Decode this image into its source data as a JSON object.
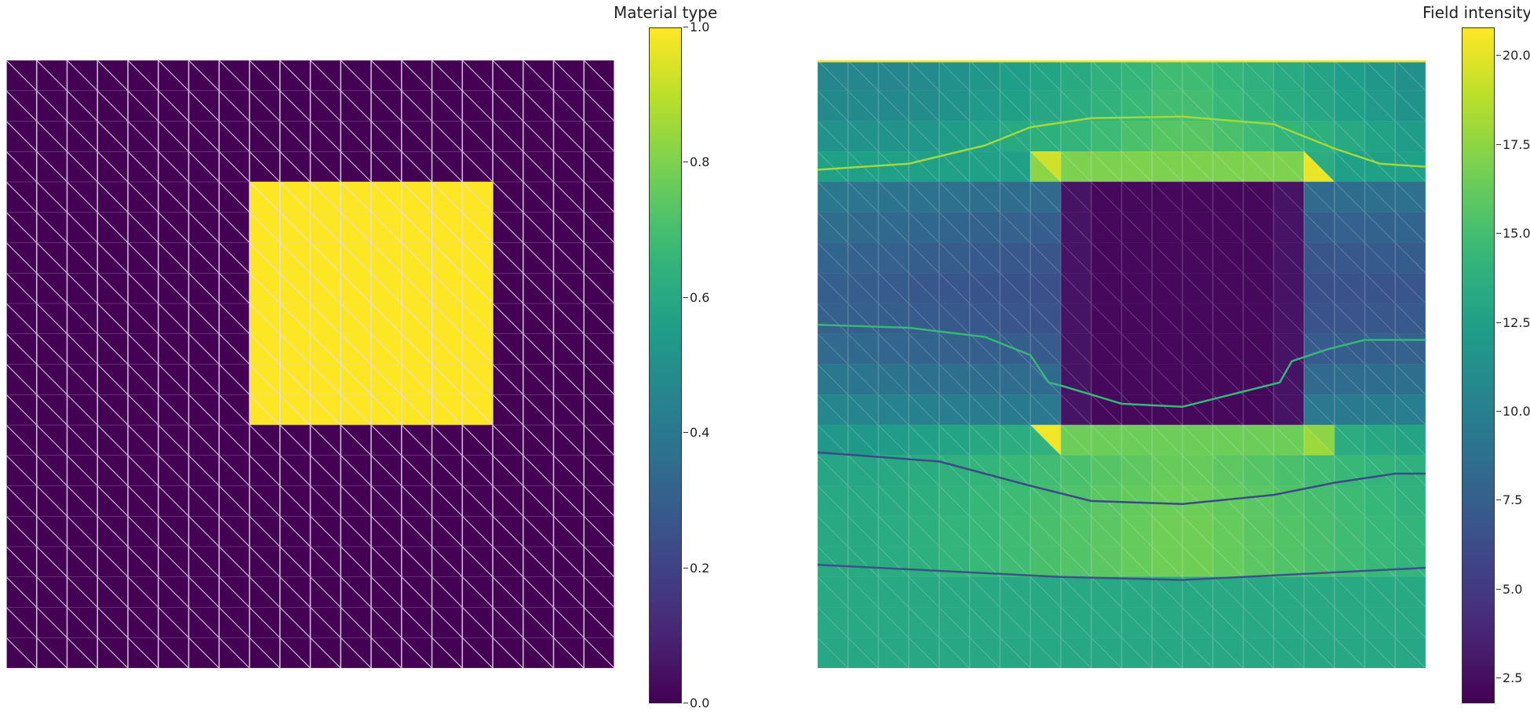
{
  "figure": {
    "panels": [
      {
        "id": "material",
        "colorbar_title": "Material type"
      },
      {
        "id": "field",
        "colorbar_title": "Field intensity"
      }
    ]
  },
  "colors": {
    "viridis": [
      "#440154",
      "#482878",
      "#3e4989",
      "#31688e",
      "#26828e",
      "#1f9e89",
      "#35b779",
      "#6ece58",
      "#b5de2b",
      "#fde725"
    ],
    "mesh_line": "#e8d8f0"
  },
  "chart_data": [
    {
      "type": "heatmap",
      "title": "",
      "colorbar_label": "Material type",
      "grid": {
        "nx": 20,
        "ny": 20,
        "cell": "two triangles per cell, diagonal top-left to bottom-right"
      },
      "values_description": "0 everywhere except an 8x8 block (columns 8-15, rows 4-11 from top) equal to 1",
      "inclusion": {
        "col_start": 8,
        "col_end": 15,
        "row_start": 4,
        "row_end": 11,
        "value": 1.0
      },
      "background_value": 0.0,
      "clim": [
        0.0,
        1.0
      ],
      "colorbar_ticks": [
        "0.0",
        "0.2",
        "0.4",
        "0.6",
        "0.8",
        "1.0"
      ],
      "colorbar_tick_values": [
        0.0,
        0.2,
        0.4,
        0.6,
        0.8,
        1.0
      ],
      "show_mesh": true,
      "axes": "off"
    },
    {
      "type": "heatmap",
      "title": "",
      "colorbar_label": "Field intensity",
      "grid": {
        "nx": 20,
        "ny": 20
      },
      "clim": [
        1.8,
        20.8
      ],
      "colorbar_ticks": [
        "2.5",
        "5.0",
        "7.5",
        "10.0",
        "12.5",
        "15.0",
        "17.5",
        "20.0"
      ],
      "colorbar_tick_values": [
        2.5,
        5.0,
        7.5,
        10.0,
        12.5,
        15.0,
        17.5,
        20.0
      ],
      "regions": {
        "inclusion_low": {
          "col_start": 8,
          "col_end": 15,
          "row_start": 4,
          "row_end": 11,
          "value": 2.2
        },
        "top_strip_high": {
          "row": 3,
          "col_start": 7,
          "col_end": 16,
          "value": 17.0,
          "corner_peak": 19.5
        },
        "bottom_strip_high": {
          "row": 12,
          "col_start": 7,
          "col_end": 16,
          "value": 16.5,
          "corner_peak": 20.5
        },
        "top_boundary_value": 20.5
      },
      "background_profile_by_row": [
        10.6,
        10.8,
        11.5,
        12.5,
        9.5,
        8.6,
        8.0,
        7.6,
        7.8,
        8.4,
        9.4,
        10.6,
        12.0,
        13.0,
        13.2,
        13.3,
        13.3,
        13.2,
        13.2,
        13.1
      ],
      "contours": [
        {
          "level": 17.5,
          "color": "#a0da39",
          "points": [
            [
              0,
              3.6
            ],
            [
              3,
              3.4
            ],
            [
              5.5,
              2.8
            ],
            [
              7,
              2.2
            ],
            [
              9,
              1.9
            ],
            [
              12,
              1.85
            ],
            [
              15,
              2.1
            ],
            [
              17,
              2.9
            ],
            [
              18.5,
              3.4
            ],
            [
              20,
              3.5
            ]
          ]
        },
        {
          "level": 12.5,
          "color": "#35b779",
          "points": [
            [
              0,
              8.7
            ],
            [
              3,
              8.8
            ],
            [
              5.5,
              9.1
            ],
            [
              7,
              9.7
            ],
            [
              7.6,
              10.6
            ],
            [
              8,
              10.7
            ],
            [
              10,
              11.3
            ],
            [
              12,
              11.4
            ],
            [
              14,
              10.9
            ],
            [
              15.2,
              10.6
            ],
            [
              15.6,
              9.9
            ],
            [
              16.8,
              9.5
            ],
            [
              18,
              9.2
            ],
            [
              20,
              9.2
            ]
          ]
        },
        {
          "level": 7.5,
          "color": "#3e4989",
          "points": [
            [
              0,
              12.9
            ],
            [
              4,
              13.2
            ],
            [
              7,
              14.0
            ],
            [
              9,
              14.5
            ],
            [
              12,
              14.6
            ],
            [
              15,
              14.3
            ],
            [
              17,
              13.9
            ],
            [
              19,
              13.6
            ],
            [
              20,
              13.6
            ]
          ]
        },
        {
          "level": 5.0,
          "color": "#3b528b",
          "points": [
            [
              0,
              16.6
            ],
            [
              4,
              16.8
            ],
            [
              8,
              17.0
            ],
            [
              12,
              17.1
            ],
            [
              16,
              16.9
            ],
            [
              20,
              16.7
            ]
          ]
        }
      ],
      "show_mesh": true,
      "axes": "off"
    }
  ]
}
